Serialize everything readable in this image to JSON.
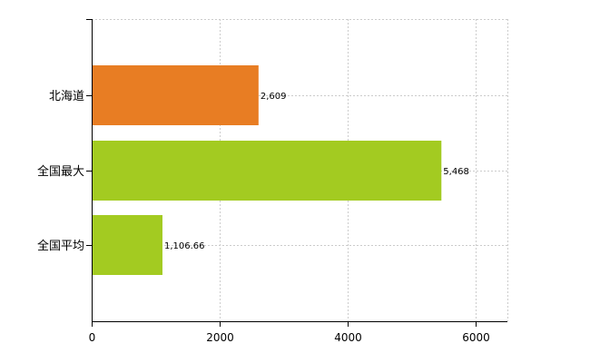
{
  "chart_data": {
    "type": "bar",
    "orientation": "horizontal",
    "categories": [
      "北海道",
      "全国最大",
      "全国平均"
    ],
    "values": [
      2609,
      5468,
      1106.66
    ],
    "value_labels": [
      "2,609",
      "5,468",
      "1,106.66"
    ],
    "colors": [
      "#e87d23",
      "#a3cb21",
      "#a3cb21"
    ],
    "xlim": [
      0,
      6500
    ],
    "x_ticks": [
      0,
      2000,
      4000,
      6000
    ],
    "x_tick_labels": [
      "0",
      "2000",
      "4000",
      "6000"
    ],
    "grid": true,
    "legend": "none",
    "title": "",
    "xlabel": "",
    "ylabel": ""
  }
}
